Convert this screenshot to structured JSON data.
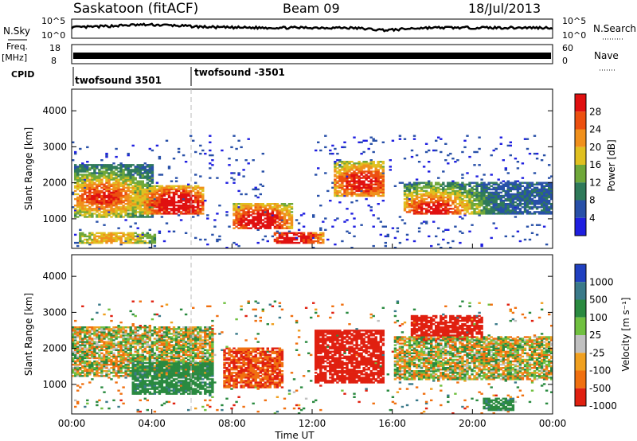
{
  "header": {
    "title": "Saskatoon (fitACF)",
    "beam": "Beam 09",
    "date": "18/Jul/2013"
  },
  "noise_panel": {
    "left_label": "N.Sky",
    "right_label": "N.Search",
    "left_ticks": [
      "10^5",
      "10^0"
    ],
    "right_ticks": [
      "10^5",
      "10^0"
    ]
  },
  "freq_panel": {
    "left_label_top": "Freq.",
    "left_label_bottom": "[MHz]",
    "right_label": "Nave",
    "left_ticks": [
      "18",
      "8"
    ],
    "right_ticks": [
      "60",
      "0"
    ]
  },
  "cpid": {
    "label": "CPID",
    "segments": [
      {
        "name": "twofsound 3501",
        "start_hour": 0
      },
      {
        "name": "twofsound -3501",
        "start_hour": 6
      }
    ]
  },
  "chart_data": [
    {
      "type": "heatmap",
      "panel": "power",
      "ylabel": "Slant Range [km]",
      "xlabel": "Time UT",
      "ylim": [
        180,
        4600
      ],
      "yticks": [
        "1000",
        "2000",
        "3000",
        "4000"
      ],
      "xticks": [
        "00:00",
        "04:00",
        "08:00",
        "12:00",
        "16:00",
        "20:00",
        "00:00"
      ],
      "colorbar": {
        "label": "Power [dB]",
        "ticks": [
          "4",
          "8",
          "12",
          "16",
          "20",
          "24",
          "28"
        ],
        "colors": [
          "#1f1fe0",
          "#2850a8",
          "#2f7a5a",
          "#6fa83a",
          "#e0c020",
          "#f0901c",
          "#ec5010",
          "#e01010"
        ]
      },
      "regions": [
        {
          "t0": 0.1,
          "t1": 4.0,
          "r0": 1000,
          "r1": 2500,
          "peak": [
            1.5,
            1600
          ],
          "level": 22
        },
        {
          "t0": 3.0,
          "t1": 6.5,
          "r0": 1100,
          "r1": 1900,
          "peak": [
            5.2,
            1400
          ],
          "level": 28
        },
        {
          "t0": 8.0,
          "t1": 11.0,
          "r0": 700,
          "r1": 1400,
          "peak": [
            9.3,
            900
          ],
          "level": 26
        },
        {
          "t0": 10.0,
          "t1": 12.5,
          "r0": 300,
          "r1": 600,
          "peak": [
            11.0,
            400
          ],
          "level": 25
        },
        {
          "t0": 13.0,
          "t1": 15.5,
          "r0": 1600,
          "r1": 2600,
          "peak": [
            14.5,
            2000
          ],
          "level": 24
        },
        {
          "t0": 16.5,
          "t1": 24.0,
          "r0": 1100,
          "r1": 2000,
          "peak": [
            18.0,
            1200
          ],
          "level": 24
        },
        {
          "t0": 0.3,
          "t1": 4.2,
          "r0": 300,
          "r1": 600,
          "peak": [
            2.0,
            450
          ],
          "level": 14
        }
      ]
    },
    {
      "type": "heatmap",
      "panel": "velocity",
      "ylabel": "Slant Range [km]",
      "xlabel": "Time UT",
      "ylim": [
        180,
        4600
      ],
      "yticks": [
        "1000",
        "2000",
        "3000",
        "4000"
      ],
      "xticks": [
        "00:00",
        "04:00",
        "08:00",
        "12:00",
        "16:00",
        "20:00",
        "00:00"
      ],
      "colorbar": {
        "label": "Velocity [m s⁻¹]",
        "ticks": [
          "1000",
          "500",
          "100",
          "25",
          "-25",
          "-100",
          "-500",
          "-1000"
        ],
        "colors": [
          "#2040c0",
          "#3a7a8a",
          "#2a8a40",
          "#70c040",
          "#c0c0c0",
          "#f0a020",
          "#f07010",
          "#e02010"
        ]
      },
      "regions": [
        {
          "t0": 0.0,
          "t1": 7.0,
          "r0": 1200,
          "r1": 2600,
          "vel": 0
        },
        {
          "t0": 3.0,
          "t1": 7.0,
          "r0": 700,
          "r1": 1600,
          "vel": 200
        },
        {
          "t0": 7.5,
          "t1": 10.5,
          "r0": 900,
          "r1": 2000,
          "vel": -300
        },
        {
          "t0": 12.0,
          "t1": 15.5,
          "r0": 1000,
          "r1": 2500,
          "vel": -600
        },
        {
          "t0": 16.8,
          "t1": 20.5,
          "r0": 2200,
          "r1": 2900,
          "vel": -500
        },
        {
          "t0": 16.0,
          "t1": 24.0,
          "r0": 1100,
          "r1": 2300,
          "vel": 0
        },
        {
          "t0": 20.5,
          "t1": 22.0,
          "r0": 250,
          "r1": 600,
          "vel": 200
        }
      ]
    }
  ]
}
